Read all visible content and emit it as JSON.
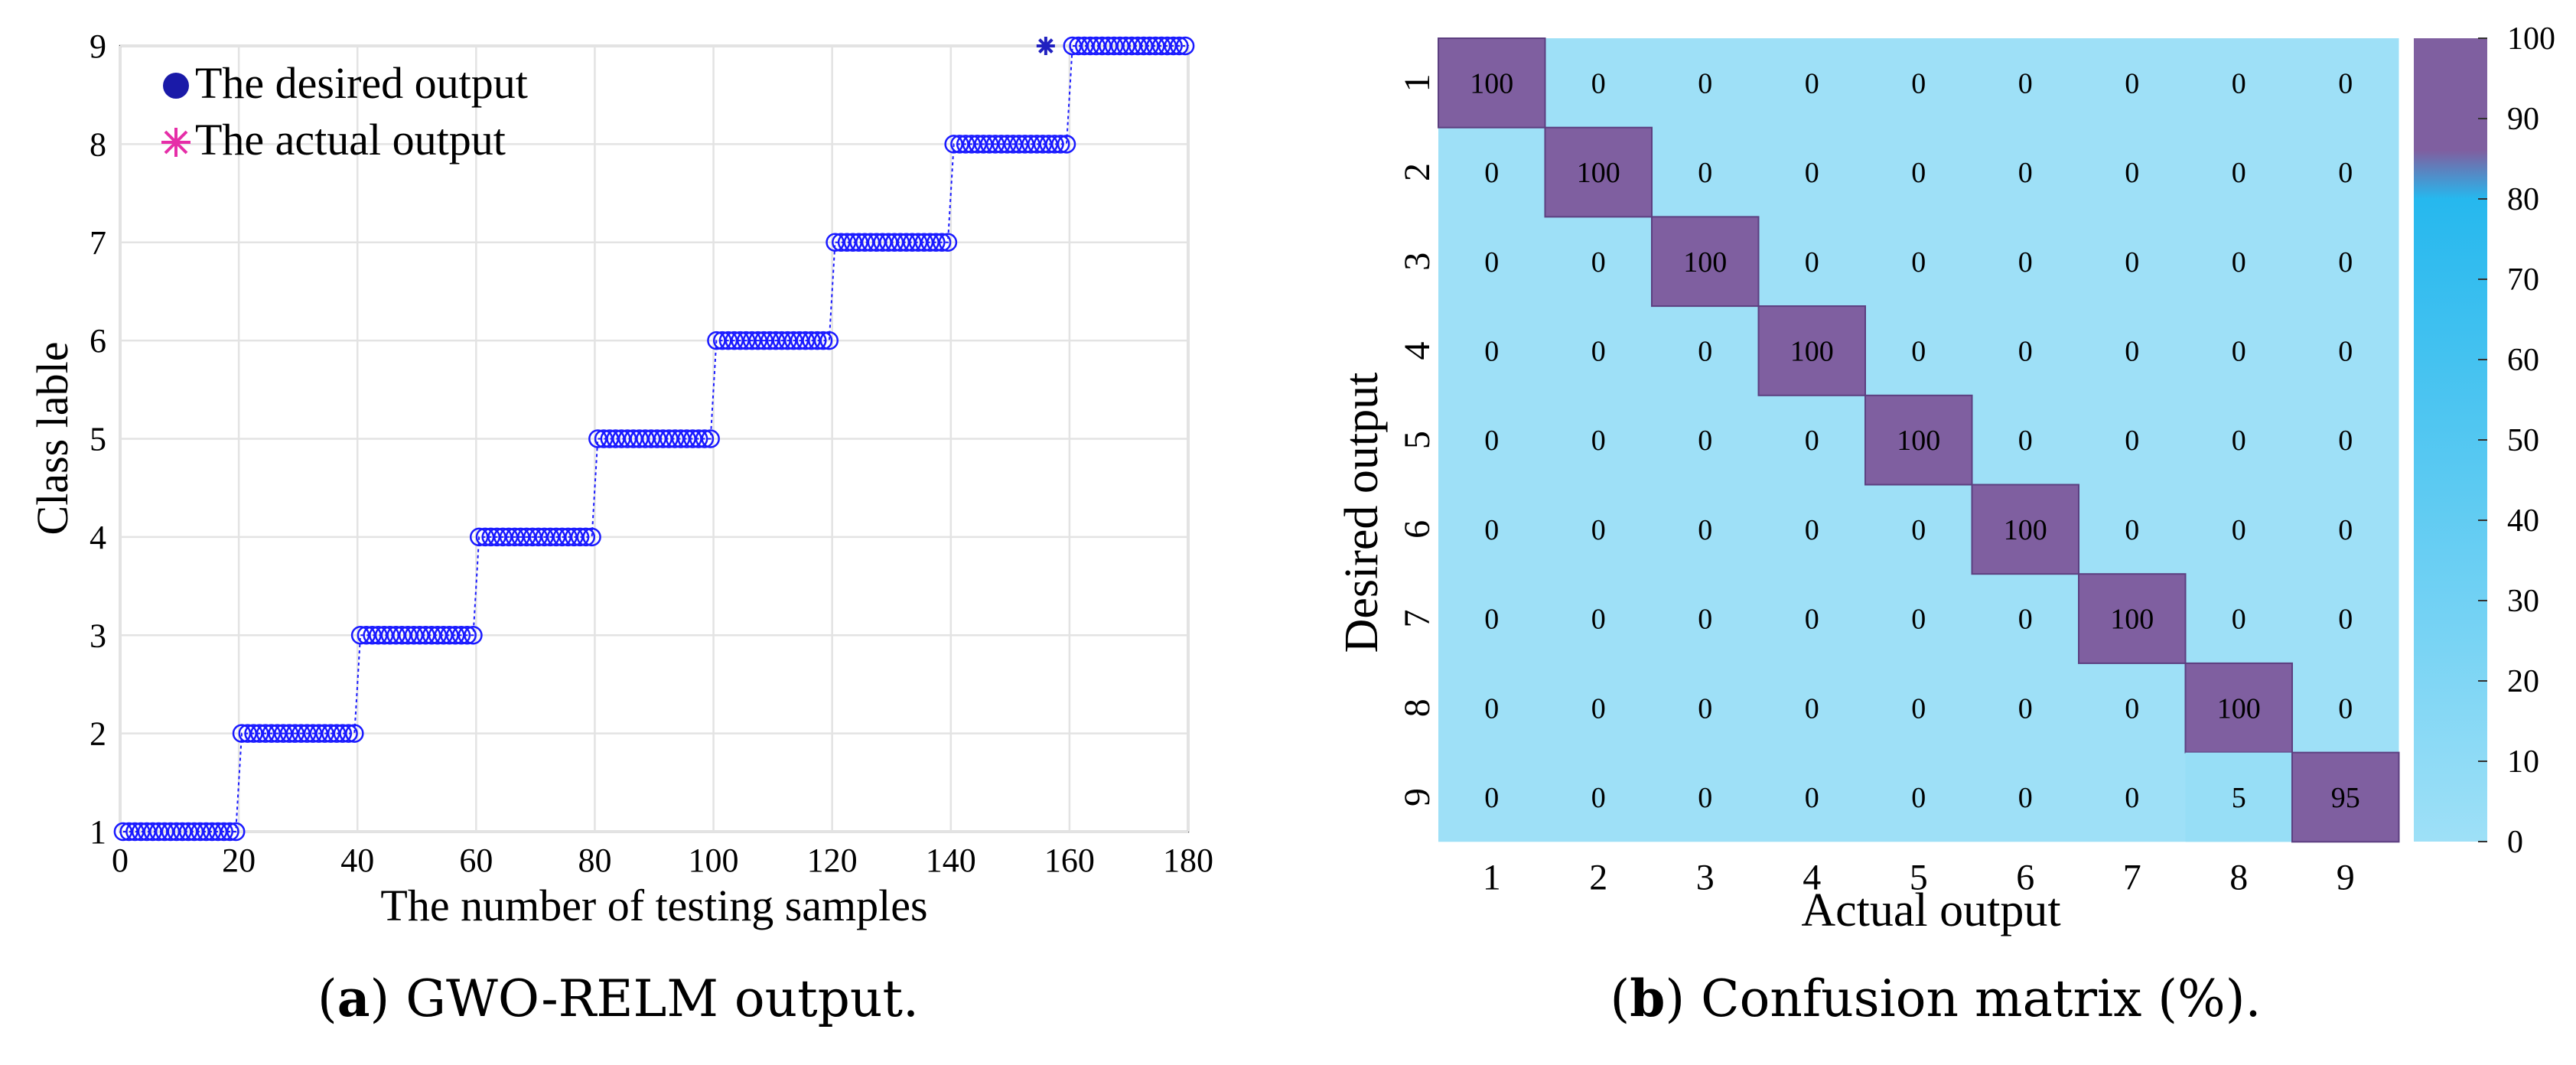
{
  "chart_data": [
    {
      "type": "scatter",
      "xlabel": "The number of testing samples",
      "ylabel": "Class lable",
      "xlim": [
        0,
        180
      ],
      "ylim": [
        1,
        9
      ],
      "xticks": [
        0,
        20,
        40,
        60,
        80,
        100,
        120,
        140,
        160,
        180
      ],
      "yticks": [
        1,
        2,
        3,
        4,
        5,
        6,
        7,
        8,
        9
      ],
      "grid": true,
      "legend_position": "top-left",
      "series": [
        {
          "name": "The desired output",
          "marker": "circle",
          "color": "#1a1aff",
          "samples_per_class": 20,
          "classes": [
            1,
            2,
            3,
            4,
            5,
            6,
            7,
            8,
            9
          ]
        },
        {
          "name": "The actual output",
          "marker": "asterisk",
          "color": "#e62ea8",
          "note_points": [
            {
              "x": 156,
              "y": 9
            }
          ]
        }
      ],
      "caption_label": "a",
      "caption_text": " GWO-RELM output."
    },
    {
      "type": "heatmap",
      "xlabel": "Actual output",
      "ylabel": "Desired output",
      "categories": [
        "1",
        "2",
        "3",
        "4",
        "5",
        "6",
        "7",
        "8",
        "9"
      ],
      "matrix": [
        [
          100,
          0,
          0,
          0,
          0,
          0,
          0,
          0,
          0
        ],
        [
          0,
          100,
          0,
          0,
          0,
          0,
          0,
          0,
          0
        ],
        [
          0,
          0,
          100,
          0,
          0,
          0,
          0,
          0,
          0
        ],
        [
          0,
          0,
          0,
          100,
          0,
          0,
          0,
          0,
          0
        ],
        [
          0,
          0,
          0,
          0,
          100,
          0,
          0,
          0,
          0
        ],
        [
          0,
          0,
          0,
          0,
          0,
          100,
          0,
          0,
          0
        ],
        [
          0,
          0,
          0,
          0,
          0,
          0,
          100,
          0,
          0
        ],
        [
          0,
          0,
          0,
          0,
          0,
          0,
          0,
          100,
          0
        ],
        [
          0,
          0,
          0,
          0,
          0,
          0,
          0,
          5,
          95
        ]
      ],
      "colorbar_ticks": [
        0,
        10,
        20,
        30,
        40,
        50,
        60,
        70,
        80,
        90,
        100
      ],
      "colors": {
        "low": "#9ee0f7",
        "mid": "#26b8ee",
        "high": "#7f5fa0"
      },
      "caption_label": "b",
      "caption_text": " Confusion matrix (%)."
    }
  ]
}
